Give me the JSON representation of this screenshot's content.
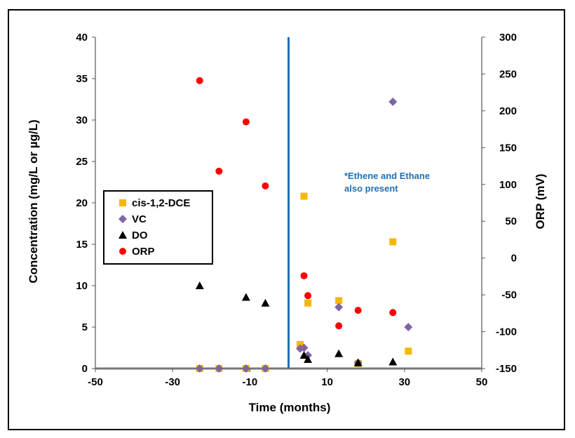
{
  "chart_data": {
    "type": "scatter",
    "x_axis": {
      "label": "Time (months)",
      "range": [
        -50,
        50
      ],
      "ticks": [
        -50,
        -30,
        -10,
        10,
        30,
        50
      ]
    },
    "y_axis_left": {
      "label": "Concentration (mg/L or µg/L)",
      "range": [
        0,
        40
      ],
      "ticks": [
        0,
        5,
        10,
        15,
        20,
        25,
        30,
        35,
        40
      ]
    },
    "y_axis_right": {
      "label": "ORP (mV)",
      "range": [
        -150,
        300
      ],
      "ticks": [
        -150,
        -100,
        -50,
        0,
        50,
        100,
        150,
        200,
        250,
        300
      ]
    },
    "grid": false,
    "legend_position": "left",
    "vertical_line": {
      "x": 0,
      "color": "#1f6fb5"
    },
    "annotation": {
      "lines": [
        "*Ethene and Ethane",
        "also present"
      ],
      "color": "#1f6fb5"
    },
    "series": [
      {
        "name": "cis-1,2-DCE",
        "marker": "square",
        "color": "#f5b800",
        "axis": "left",
        "points": [
          [
            -23,
            0
          ],
          [
            -18,
            0
          ],
          [
            -11,
            0
          ],
          [
            -6,
            0
          ],
          [
            3,
            2.9
          ],
          [
            4,
            20.8
          ],
          [
            5,
            7.9
          ],
          [
            13,
            8.2
          ],
          [
            18,
            0.6
          ],
          [
            27,
            15.3
          ],
          [
            31,
            2.1
          ]
        ]
      },
      {
        "name": "VC",
        "marker": "diamond",
        "color": "#8064a2",
        "axis": "left",
        "points": [
          [
            -23,
            0
          ],
          [
            -18,
            0
          ],
          [
            -11,
            0
          ],
          [
            -6,
            0
          ],
          [
            3,
            2.4
          ],
          [
            4,
            2.5
          ],
          [
            5,
            1.6
          ],
          [
            13,
            7.4
          ],
          [
            18,
            0.7
          ],
          [
            27,
            32.2
          ],
          [
            31,
            5
          ]
        ]
      },
      {
        "name": "DO",
        "marker": "triangle",
        "color": "#000000",
        "axis": "left",
        "points": [
          [
            -23,
            10
          ],
          [
            -11,
            8.6
          ],
          [
            -6,
            7.9
          ],
          [
            4,
            1.6
          ],
          [
            5,
            1.1
          ],
          [
            13,
            1.8
          ],
          [
            18,
            0.7
          ],
          [
            27,
            0.8
          ]
        ]
      },
      {
        "name": "ORP",
        "marker": "circle",
        "color": "#ff0000",
        "axis": "right",
        "points": [
          [
            -23,
            241
          ],
          [
            -18,
            118
          ],
          [
            -11,
            185
          ],
          [
            -6,
            98
          ],
          [
            4,
            -24
          ],
          [
            5,
            -51
          ],
          [
            13,
            -92
          ],
          [
            18,
            -71
          ],
          [
            27,
            -74
          ]
        ]
      }
    ]
  }
}
